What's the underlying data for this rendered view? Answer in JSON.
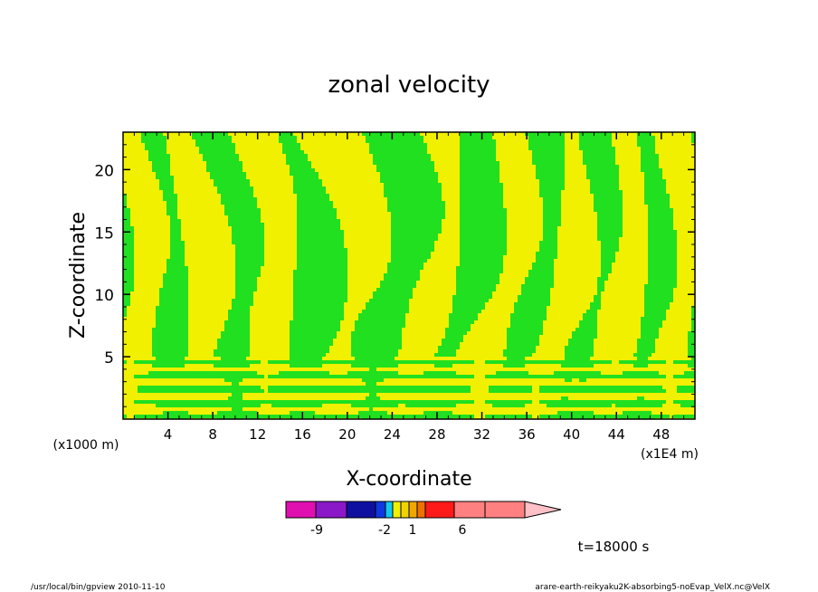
{
  "chart_data": {
    "type": "heatmap",
    "title": "zonal velocity",
    "xlabel": "X-coordinate",
    "ylabel": "Z-coordinate",
    "y_unit": "(x1000 m)",
    "x_unit": "(x1E4 m)",
    "xlim": [
      0,
      51
    ],
    "ylim": [
      0,
      23
    ],
    "x_ticks": [
      "4",
      "8",
      "12",
      "16",
      "20",
      "24",
      "28",
      "32",
      "36",
      "40",
      "44",
      "48"
    ],
    "y_ticks": [
      "5",
      "10",
      "15",
      "20"
    ],
    "colorbar": {
      "levels": [
        -9,
        -2,
        1,
        6
      ],
      "tick_labels": [
        "-9",
        "-2",
        "1",
        "6"
      ],
      "colors": [
        "#e010b0",
        "#8a18c8",
        "#1010a0",
        "#1038e0",
        "#10c8f0",
        "#f0f000",
        "#f0d400",
        "#f0a800",
        "#f07000",
        "#ff1a1a",
        "#ff8080",
        "#ffc0c8"
      ]
    },
    "field_colors": {
      "positive": "#f0f000",
      "negative": "#20e020"
    },
    "time_label": "t=18000 s"
  },
  "footer": {
    "left": "/usr/local/bin/gpview  2010-11-10",
    "right": "arare-earth-reikyaku2K-absorbing5-noEvap_VelX.nc@VelX"
  }
}
